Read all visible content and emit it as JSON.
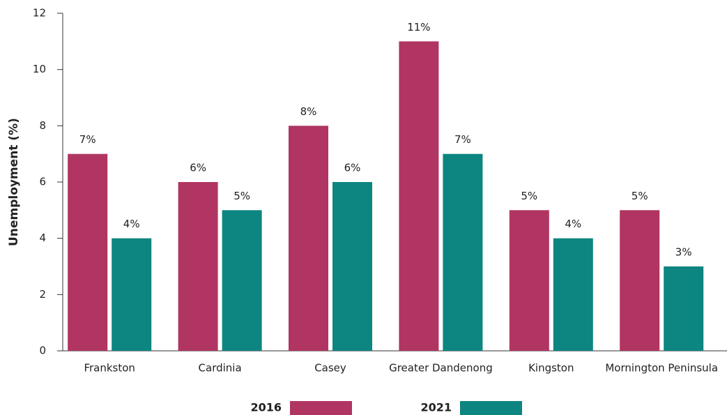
{
  "chart_data": {
    "type": "bar",
    "y_label": "Unemployment (%)",
    "categories": [
      "Frankston",
      "Cardinia",
      "Casey",
      "Greater Dandenong",
      "Kingston",
      "Mornington Peninsula"
    ],
    "series": [
      {
        "name": "2016",
        "color": "#b03562",
        "values": [
          7,
          6,
          8,
          11,
          5,
          5
        ],
        "value_labels": [
          "7%",
          "6%",
          "8%",
          "11%",
          "5%",
          "5%"
        ]
      },
      {
        "name": "2021",
        "color": "#0d8580",
        "values": [
          4,
          5,
          6,
          7,
          4,
          3
        ],
        "value_labels": [
          "4%",
          "5%",
          "6%",
          "7%",
          "4%",
          "3%"
        ]
      }
    ],
    "ylim": [
      0,
      12
    ],
    "yticks": [
      0,
      2,
      4,
      6,
      8,
      10,
      12
    ],
    "legend": "bottom"
  }
}
